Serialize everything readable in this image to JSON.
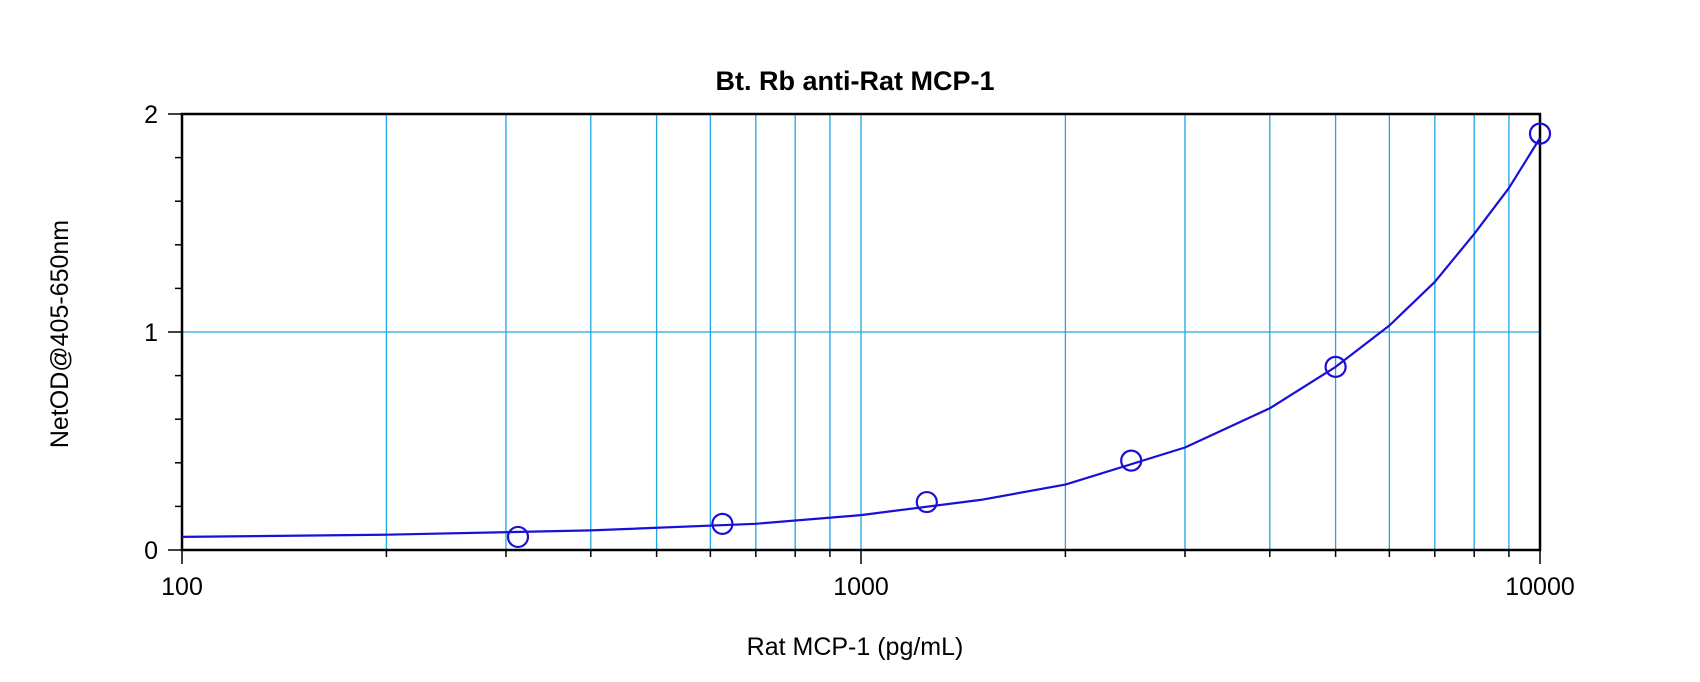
{
  "chart_data": {
    "type": "scatter",
    "title": "Bt. Rb anti-Rat MCP-1",
    "xlabel": "Rat MCP-1 (pg/mL)",
    "ylabel": "NetOD@405-650nm",
    "x_scale": "log",
    "xlim": [
      100,
      10000
    ],
    "ylim": [
      0,
      2
    ],
    "x_ticks": [
      100,
      1000,
      10000
    ],
    "x_tick_labels": [
      "100",
      "1000",
      "10000"
    ],
    "y_ticks": [
      0,
      1,
      2
    ],
    "y_tick_labels": [
      "0",
      "1",
      "2"
    ],
    "grid": true,
    "colors": {
      "grid": "#1ea6e6",
      "series": "#1a0fd6",
      "frame": "#000000"
    },
    "series": [
      {
        "marker": "open-circle",
        "x": [
          312.5,
          625,
          1250,
          2500,
          5000,
          10000
        ],
        "y": [
          0.06,
          0.12,
          0.22,
          0.41,
          0.84,
          1.91
        ]
      }
    ],
    "fit_curve": {
      "x": [
        100,
        200,
        400,
        700,
        1000,
        1500,
        2000,
        3000,
        4000,
        5000,
        6000,
        7000,
        8000,
        9000,
        10000
      ],
      "y": [
        0.06,
        0.07,
        0.09,
        0.12,
        0.16,
        0.23,
        0.3,
        0.47,
        0.65,
        0.84,
        1.03,
        1.23,
        1.45,
        1.66,
        1.89
      ]
    }
  }
}
